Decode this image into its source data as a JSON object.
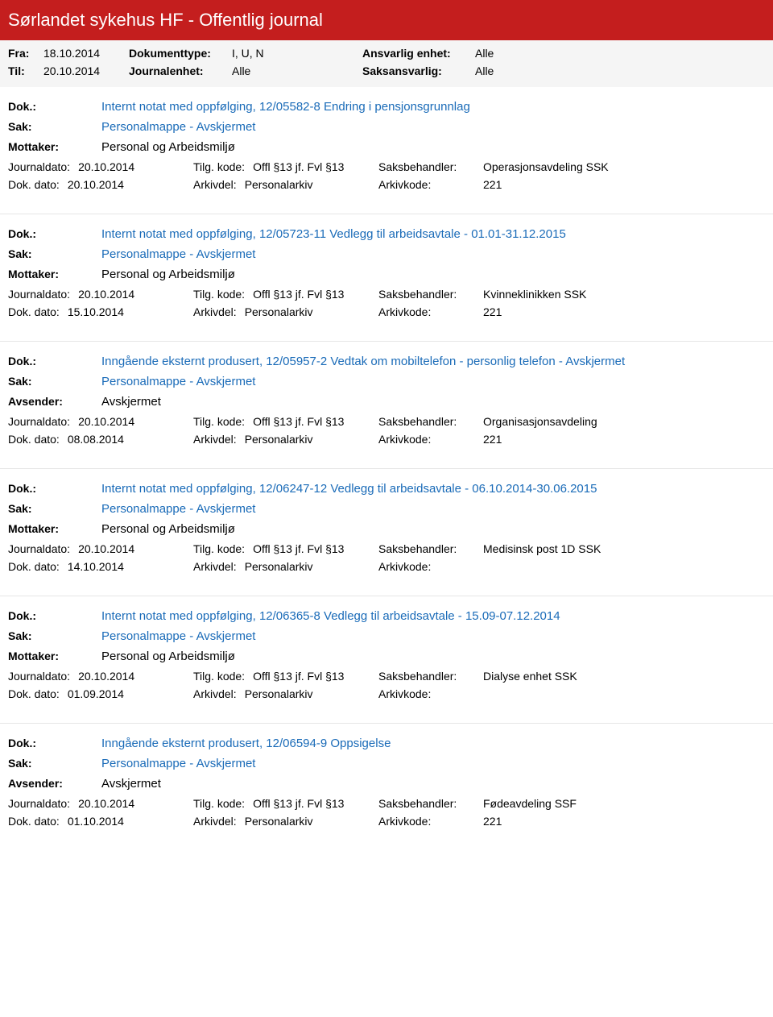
{
  "colors": {
    "header_bg": "#c41e1e",
    "header_text": "#ffffff",
    "filter_bg": "#f5f5f5",
    "link_color": "#1a6bb8",
    "text_color": "#000000",
    "separator": "#e6e6e6",
    "body_bg": "#ffffff"
  },
  "header": {
    "title": "Sørlandet sykehus HF - Offentlig journal"
  },
  "filters": {
    "fra_label": "Fra:",
    "fra_value": "18.10.2014",
    "til_label": "Til:",
    "til_value": "20.10.2014",
    "dokumenttype_label": "Dokumenttype:",
    "dokumenttype_value": "I, U, N",
    "journalenhet_label": "Journalenhet:",
    "journalenhet_value": "Alle",
    "ansvarlig_enhet_label": "Ansvarlig enhet:",
    "ansvarlig_enhet_value": "Alle",
    "saksansvarlig_label": "Saksansvarlig:",
    "saksansvarlig_value": "Alle"
  },
  "labels": {
    "dok": "Dok.:",
    "sak": "Sak:",
    "mottaker": "Mottaker:",
    "avsender": "Avsender:",
    "journaldato": "Journaldato:",
    "dokdato": "Dok. dato:",
    "tilgkode": "Tilg. kode:",
    "arkivdel": "Arkivdel:",
    "saksbehandler": "Saksbehandler:",
    "arkivkode": "Arkivkode:"
  },
  "entries": [
    {
      "dok": "Internt notat med oppfølging, 12/05582-8 Endring i pensjonsgrunnlag",
      "sak": "Personalmappe - Avskjermet",
      "party_label": "Mottaker:",
      "party_value": "Personal og Arbeidsmiljø",
      "journaldato": "20.10.2014",
      "tilgkode": "Offl §13 jf. Fvl §13",
      "saksbehandler": "Operasjonsavdeling SSK",
      "dokdato": "20.10.2014",
      "arkivdel": "Personalarkiv",
      "arkivkode": "221"
    },
    {
      "dok": "Internt notat med oppfølging, 12/05723-11 Vedlegg til arbeidsavtale - 01.01-31.12.2015",
      "sak": "Personalmappe - Avskjermet",
      "party_label": "Mottaker:",
      "party_value": "Personal og Arbeidsmiljø",
      "journaldato": "20.10.2014",
      "tilgkode": "Offl §13 jf. Fvl §13",
      "saksbehandler": "Kvinneklinikken SSK",
      "dokdato": "15.10.2014",
      "arkivdel": "Personalarkiv",
      "arkivkode": "221"
    },
    {
      "dok": "Inngående eksternt produsert, 12/05957-2 Vedtak om mobiltelefon - personlig telefon - Avskjermet",
      "sak": "Personalmappe - Avskjermet",
      "party_label": "Avsender:",
      "party_value": "Avskjermet",
      "journaldato": "20.10.2014",
      "tilgkode": "Offl §13 jf. Fvl §13",
      "saksbehandler": "Organisasjonsavdeling",
      "dokdato": "08.08.2014",
      "arkivdel": "Personalarkiv",
      "arkivkode": "221"
    },
    {
      "dok": "Internt notat med oppfølging, 12/06247-12 Vedlegg til arbeidsavtale - 06.10.2014-30.06.2015",
      "sak": "Personalmappe - Avskjermet",
      "party_label": "Mottaker:",
      "party_value": "Personal og Arbeidsmiljø",
      "journaldato": "20.10.2014",
      "tilgkode": "Offl §13 jf. Fvl §13",
      "saksbehandler": "Medisinsk post 1D SSK",
      "dokdato": "14.10.2014",
      "arkivdel": "Personalarkiv",
      "arkivkode": ""
    },
    {
      "dok": "Internt notat med oppfølging, 12/06365-8 Vedlegg til arbeidsavtale - 15.09-07.12.2014",
      "sak": "Personalmappe - Avskjermet",
      "party_label": "Mottaker:",
      "party_value": "Personal og Arbeidsmiljø",
      "journaldato": "20.10.2014",
      "tilgkode": "Offl §13 jf. Fvl §13",
      "saksbehandler": "Dialyse enhet SSK",
      "dokdato": "01.09.2014",
      "arkivdel": "Personalarkiv",
      "arkivkode": ""
    },
    {
      "dok": "Inngående eksternt produsert, 12/06594-9 Oppsigelse",
      "sak": "Personalmappe - Avskjermet",
      "party_label": "Avsender:",
      "party_value": "Avskjermet",
      "journaldato": "20.10.2014",
      "tilgkode": "Offl §13 jf. Fvl §13",
      "saksbehandler": "Fødeavdeling SSF",
      "dokdato": "01.10.2014",
      "arkivdel": "Personalarkiv",
      "arkivkode": "221"
    }
  ]
}
